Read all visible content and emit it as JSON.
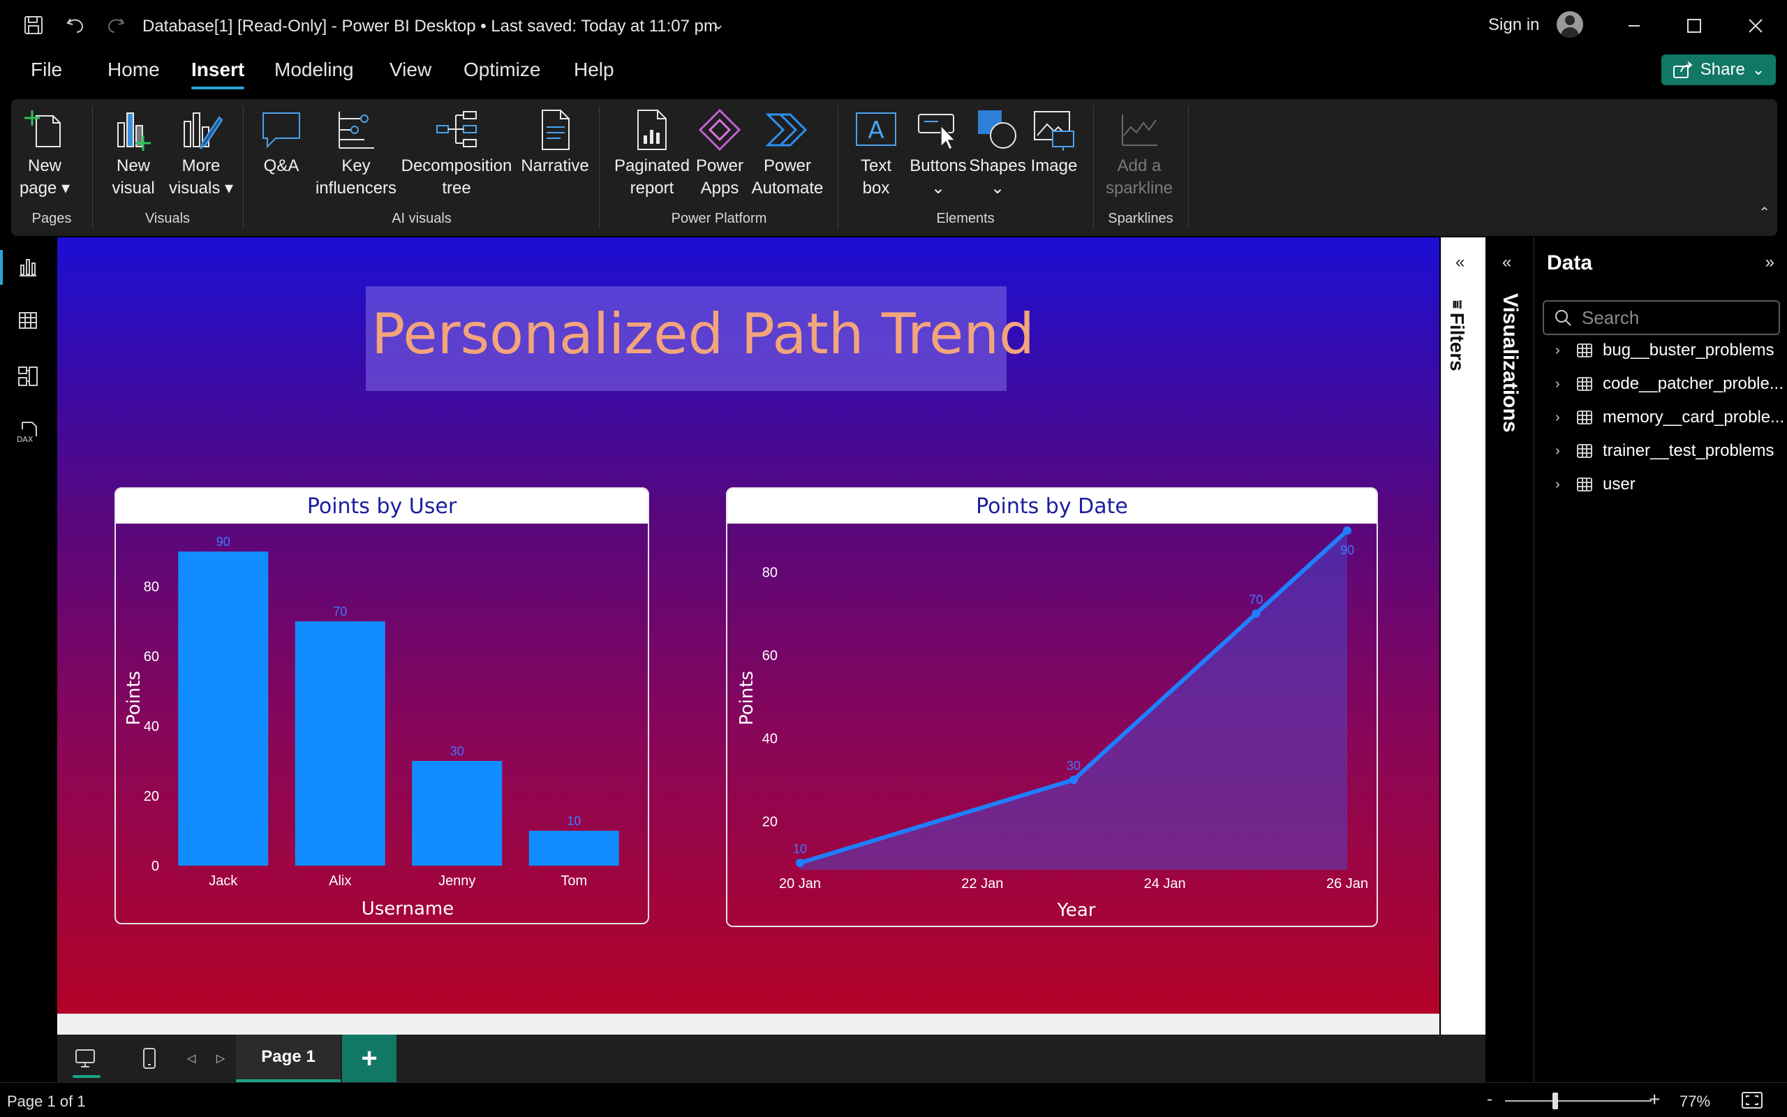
{
  "titlebar": {
    "title": "Database[1] [Read-Only] - Power BI Desktop",
    "saved": "Last saved: Today at 11:07 pm",
    "sign_in": "Sign in"
  },
  "menu": {
    "tabs": [
      {
        "label": "File"
      },
      {
        "label": "Home"
      },
      {
        "label": "Insert",
        "active": true
      },
      {
        "label": "Modeling"
      },
      {
        "label": "View"
      },
      {
        "label": "Optimize"
      },
      {
        "label": "Help"
      }
    ],
    "share": "Share"
  },
  "ribbon": {
    "buttons": [
      {
        "line1": "New",
        "line2": "page ▾",
        "icon": "new-page-icon"
      },
      {
        "line1": "New",
        "line2": "visual",
        "icon": "new-visual-icon"
      },
      {
        "line1": "More",
        "line2": "visuals ▾",
        "icon": "more-visuals-icon"
      },
      {
        "line1": "Q&A",
        "line2": "",
        "icon": "qa-icon"
      },
      {
        "line1": "Key",
        "line2": "influencers",
        "icon": "key-influencers-icon"
      },
      {
        "line1": "Decomposition",
        "line2": "tree",
        "icon": "decomposition-tree-icon"
      },
      {
        "line1": "Narrative",
        "line2": "",
        "icon": "narrative-icon"
      },
      {
        "line1": "Paginated",
        "line2": "report",
        "icon": "paginated-report-icon"
      },
      {
        "line1": "Power",
        "line2": "Apps",
        "icon": "power-apps-icon"
      },
      {
        "line1": "Power",
        "line2": "Automate",
        "icon": "power-automate-icon"
      },
      {
        "line1": "Text",
        "line2": "box",
        "icon": "text-box-icon"
      },
      {
        "line1": "Buttons",
        "line2": "⌄",
        "icon": "buttons-icon"
      },
      {
        "line1": "Shapes",
        "line2": "⌄",
        "icon": "shapes-icon"
      },
      {
        "line1": "Image",
        "line2": "",
        "icon": "image-icon"
      },
      {
        "line1": "Add a",
        "line2": "sparkline",
        "icon": "sparkline-icon",
        "disabled": true
      }
    ],
    "groups": [
      "Pages",
      "Visuals",
      "AI visuals",
      "Power Platform",
      "Elements",
      "Sparklines"
    ]
  },
  "report": {
    "title": "Personalized Path Trend"
  },
  "chart_data": [
    {
      "type": "bar",
      "title": "Points by User",
      "categories": [
        "Jack",
        "Alix",
        "Jenny",
        "Tom"
      ],
      "values": [
        90,
        70,
        30,
        10
      ],
      "xlabel": "Username",
      "ylabel": "Points",
      "ylim": [
        0,
        90
      ],
      "yticks": [
        0,
        20,
        40,
        60,
        80
      ],
      "color": "#118dff",
      "data_labels": true,
      "grid": false
    },
    {
      "type": "area",
      "title": "Points by Date",
      "x": [
        "20 Jan",
        "23 Jan",
        "25 Jan",
        "26 Jan"
      ],
      "x_days": [
        20,
        23,
        25,
        26
      ],
      "values": [
        10,
        30,
        70,
        90
      ],
      "xticks": [
        "20 Jan",
        "22 Jan",
        "24 Jan",
        "26 Jan"
      ],
      "xtick_days": [
        20,
        22,
        24,
        26
      ],
      "xlabel": "Year",
      "ylabel": "Points",
      "ylim": [
        9,
        90
      ],
      "yticks": [
        20,
        40,
        60,
        80
      ],
      "color": "#1f7fff",
      "data_labels": true,
      "grid": false
    }
  ],
  "panes": {
    "filters": "Filters",
    "visualizations": "Visualizations",
    "data": {
      "title": "Data",
      "search_placeholder": "Search",
      "tables": [
        "bug__buster_problems",
        "code__patcher_proble...",
        "memory__card_proble...",
        "trainer__test_problems",
        "user"
      ]
    }
  },
  "pages": {
    "tab": "Page 1"
  },
  "status": {
    "page": "Page 1 of 1",
    "zoom": "77%",
    "zoom_percent": 77
  }
}
